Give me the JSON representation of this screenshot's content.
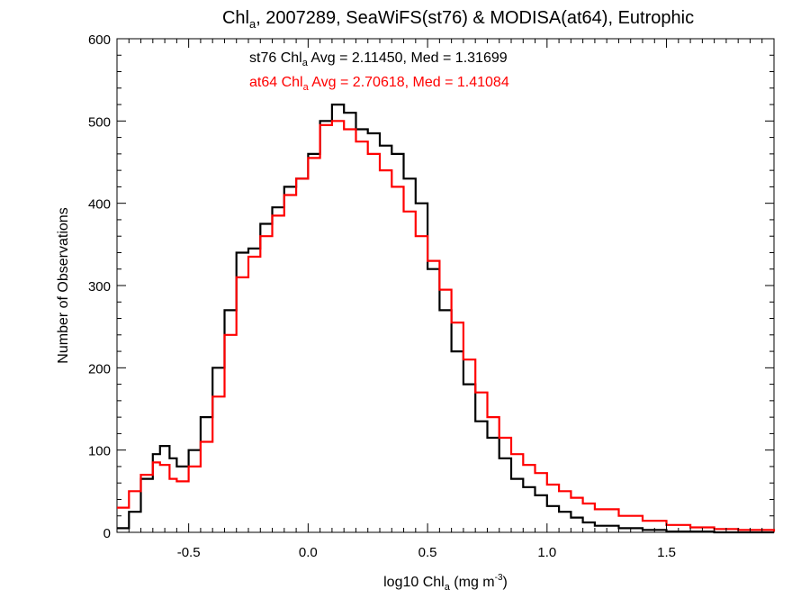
{
  "chart_data": {
    "type": "line",
    "title": {
      "pre": "Chl",
      "sub": "a",
      "post": ", 2007289, SeaWiFS(st76) & MODISA(at64), Eutrophic"
    },
    "xlabel": {
      "pre": "log10 Chl",
      "sub": "a",
      "mid": " (mg m",
      "sup": "-3",
      "post": ")"
    },
    "ylabel": "Number of Observations",
    "xlim": [
      -0.8,
      1.95
    ],
    "ylim": [
      0,
      600
    ],
    "x_ticks": [
      -0.5,
      0.0,
      0.5,
      1.0,
      1.5
    ],
    "x_tick_labels": [
      "-0.5",
      "0.0",
      "0.5",
      "1.0",
      "1.5"
    ],
    "y_ticks": [
      0,
      100,
      200,
      300,
      400,
      500,
      600
    ],
    "y_tick_labels": [
      "0",
      "100",
      "200",
      "300",
      "400",
      "500",
      "600"
    ],
    "annotations": [
      {
        "pre": "st76 Chl",
        "sub": "a",
        "post": " Avg = 2.11450, Med = 1.31699",
        "color": "#000000"
      },
      {
        "pre": "at64 Chl",
        "sub": "a",
        "post": " Avg = 2.70618, Med = 1.41084",
        "color": "#ff0000"
      }
    ],
    "series": [
      {
        "color": "#000000",
        "points": [
          [
            -0.8,
            5
          ],
          [
            -0.75,
            25
          ],
          [
            -0.7,
            65
          ],
          [
            -0.65,
            95
          ],
          [
            -0.62,
            105
          ],
          [
            -0.58,
            90
          ],
          [
            -0.55,
            80
          ],
          [
            -0.5,
            100
          ],
          [
            -0.45,
            140
          ],
          [
            -0.4,
            200
          ],
          [
            -0.35,
            270
          ],
          [
            -0.3,
            340
          ],
          [
            -0.25,
            345
          ],
          [
            -0.2,
            375
          ],
          [
            -0.15,
            395
          ],
          [
            -0.1,
            420
          ],
          [
            -0.05,
            430
          ],
          [
            0.0,
            460
          ],
          [
            0.05,
            500
          ],
          [
            0.1,
            520
          ],
          [
            0.15,
            510
          ],
          [
            0.2,
            490
          ],
          [
            0.25,
            485
          ],
          [
            0.3,
            470
          ],
          [
            0.35,
            460
          ],
          [
            0.4,
            430
          ],
          [
            0.45,
            400
          ],
          [
            0.5,
            320
          ],
          [
            0.55,
            270
          ],
          [
            0.6,
            220
          ],
          [
            0.65,
            180
          ],
          [
            0.7,
            135
          ],
          [
            0.75,
            115
          ],
          [
            0.8,
            90
          ],
          [
            0.85,
            65
          ],
          [
            0.9,
            55
          ],
          [
            0.95,
            45
          ],
          [
            1.0,
            32
          ],
          [
            1.05,
            25
          ],
          [
            1.1,
            18
          ],
          [
            1.15,
            12
          ],
          [
            1.2,
            8
          ],
          [
            1.3,
            5
          ],
          [
            1.4,
            3
          ],
          [
            1.5,
            1
          ],
          [
            1.6,
            1
          ],
          [
            1.7,
            0
          ],
          [
            1.8,
            0
          ],
          [
            1.95,
            0
          ]
        ]
      },
      {
        "color": "#ff0000",
        "points": [
          [
            -0.8,
            30
          ],
          [
            -0.75,
            50
          ],
          [
            -0.7,
            70
          ],
          [
            -0.65,
            85
          ],
          [
            -0.62,
            82
          ],
          [
            -0.58,
            65
          ],
          [
            -0.55,
            62
          ],
          [
            -0.5,
            80
          ],
          [
            -0.45,
            110
          ],
          [
            -0.4,
            165
          ],
          [
            -0.35,
            240
          ],
          [
            -0.3,
            310
          ],
          [
            -0.25,
            335
          ],
          [
            -0.2,
            360
          ],
          [
            -0.15,
            385
          ],
          [
            -0.1,
            410
          ],
          [
            -0.05,
            430
          ],
          [
            0.0,
            455
          ],
          [
            0.05,
            495
          ],
          [
            0.1,
            500
          ],
          [
            0.15,
            490
          ],
          [
            0.2,
            475
          ],
          [
            0.25,
            460
          ],
          [
            0.3,
            440
          ],
          [
            0.35,
            420
          ],
          [
            0.4,
            390
          ],
          [
            0.45,
            360
          ],
          [
            0.5,
            330
          ],
          [
            0.55,
            295
          ],
          [
            0.6,
            255
          ],
          [
            0.65,
            210
          ],
          [
            0.7,
            170
          ],
          [
            0.75,
            140
          ],
          [
            0.8,
            115
          ],
          [
            0.85,
            95
          ],
          [
            0.9,
            82
          ],
          [
            0.95,
            72
          ],
          [
            1.0,
            58
          ],
          [
            1.05,
            50
          ],
          [
            1.1,
            42
          ],
          [
            1.15,
            35
          ],
          [
            1.2,
            28
          ],
          [
            1.3,
            20
          ],
          [
            1.4,
            14
          ],
          [
            1.5,
            9
          ],
          [
            1.6,
            6
          ],
          [
            1.7,
            4
          ],
          [
            1.8,
            3
          ],
          [
            1.95,
            1
          ]
        ]
      }
    ]
  }
}
